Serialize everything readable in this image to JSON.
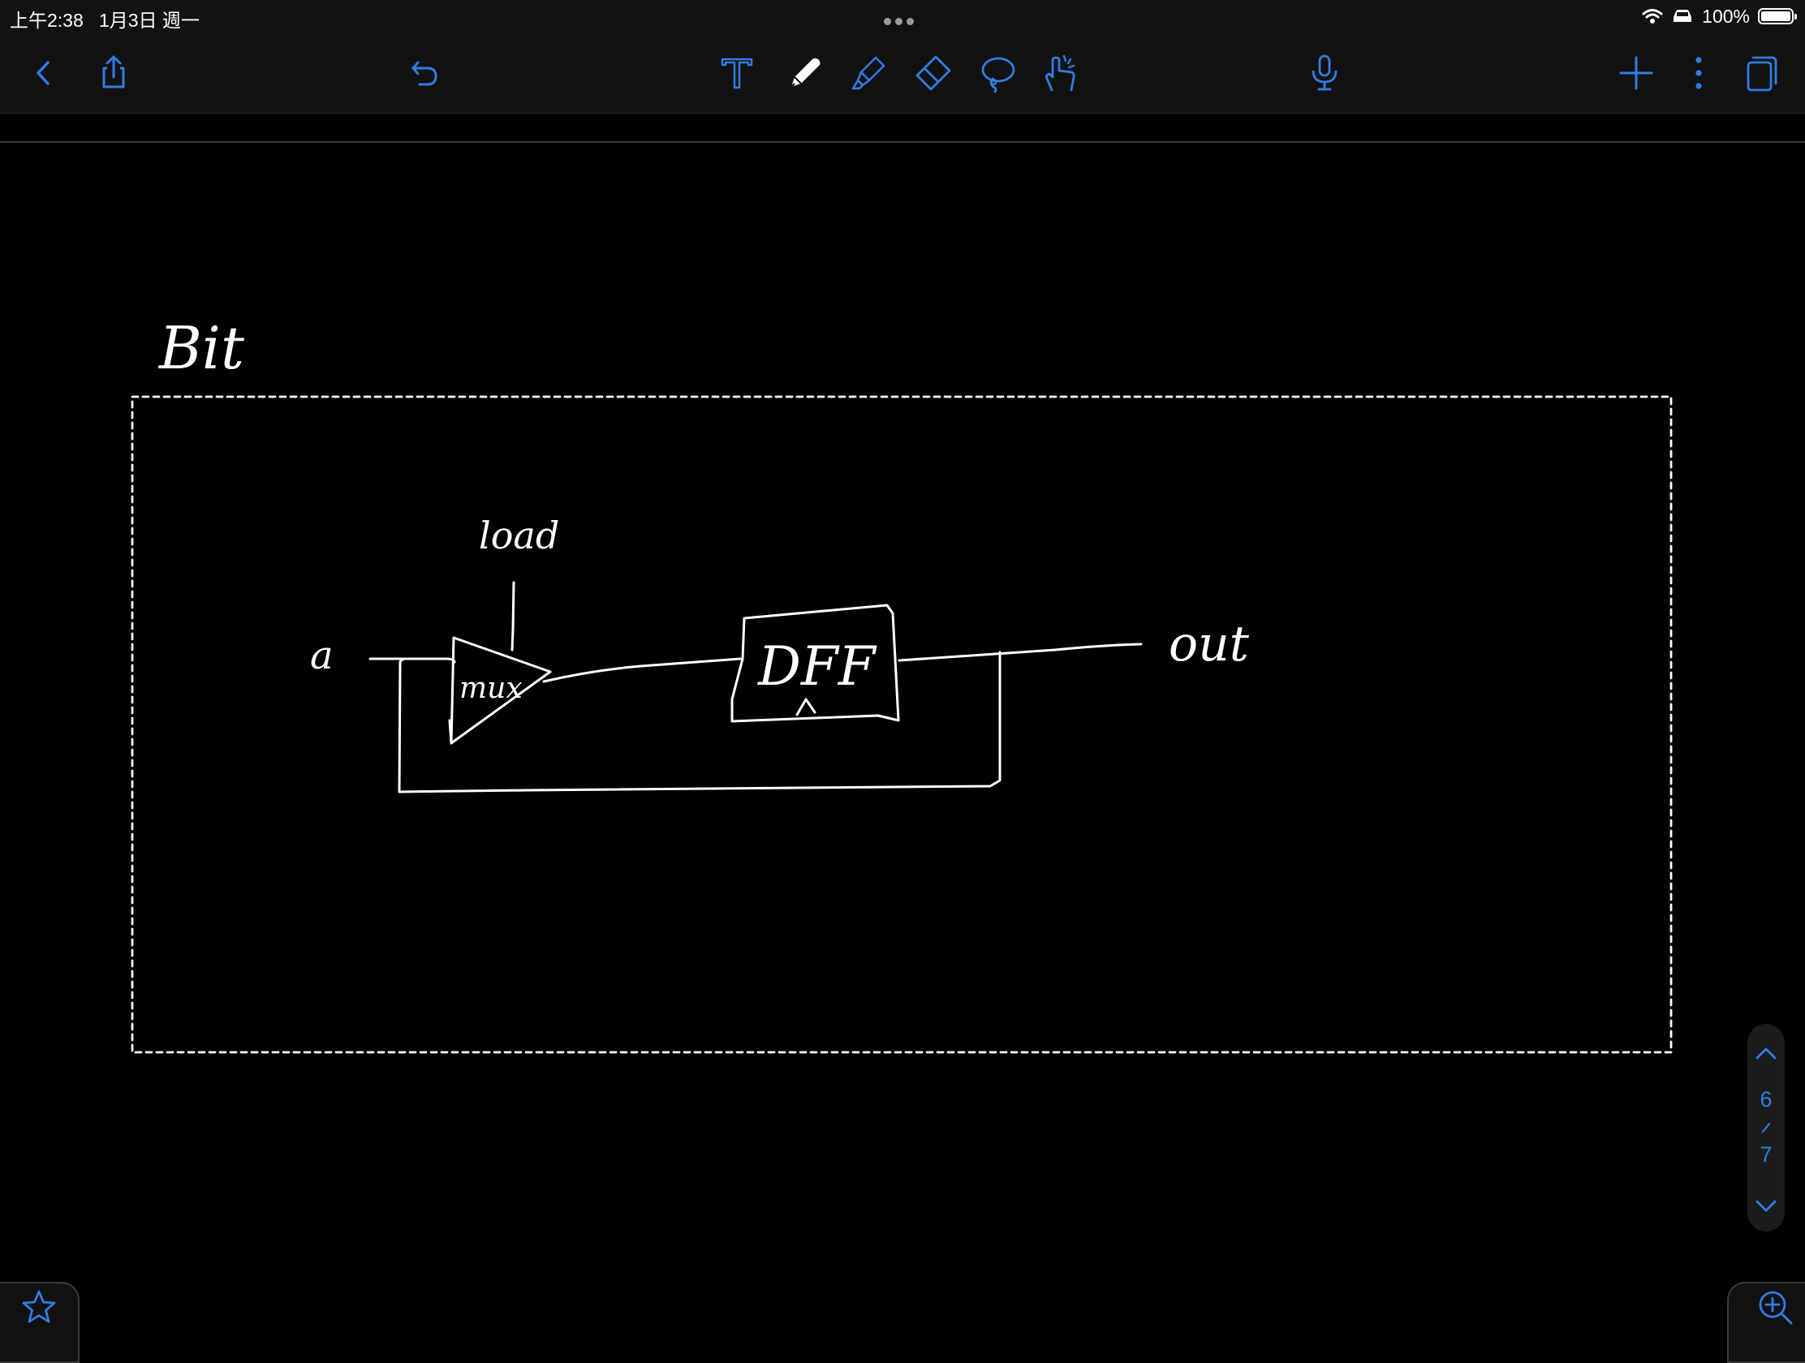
{
  "status": {
    "time": "上午2:38",
    "date": "1月3日 週一",
    "battery": "100%",
    "battery_level": 1.0
  },
  "toolbar": {
    "left": [
      {
        "name": "back-icon"
      },
      {
        "name": "share-icon"
      },
      {
        "name": "undo-icon"
      }
    ],
    "tools": [
      {
        "name": "text-tool-icon"
      },
      {
        "name": "pen-tool-icon",
        "selected": true
      },
      {
        "name": "highlighter-tool-icon"
      },
      {
        "name": "eraser-tool-icon"
      },
      {
        "name": "lasso-tool-icon"
      },
      {
        "name": "hand-pointer-tool-icon"
      }
    ],
    "right": [
      {
        "name": "microphone-icon"
      },
      {
        "name": "add-page-icon"
      },
      {
        "name": "more-options-icon"
      },
      {
        "name": "page-thumbnails-icon"
      }
    ],
    "accent_color": "#2f7de1"
  },
  "note": {
    "title": "Bit",
    "labels": {
      "input": "a",
      "control": "load",
      "mux": "mux",
      "flipflop": "DFF",
      "output": "out"
    }
  },
  "page_nav": {
    "current": "6",
    "total": "7"
  }
}
